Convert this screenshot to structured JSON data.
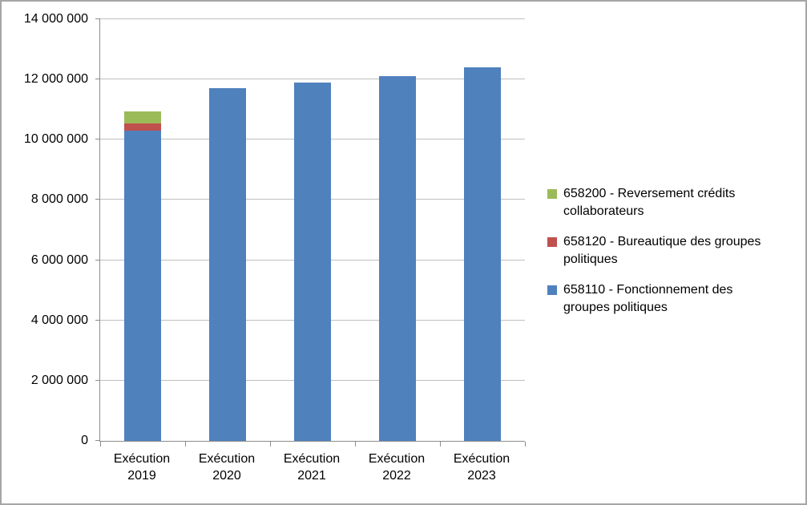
{
  "chart_data": {
    "type": "bar",
    "stacked": true,
    "title": "",
    "xlabel": "",
    "ylabel": "",
    "grid": true,
    "legend_position": "right",
    "ylim": [
      0,
      14000000
    ],
    "categories": [
      "Exécution 2019",
      "Exécution 2020",
      "Exécution 2021",
      "Exécution 2022",
      "Exécution 2023"
    ],
    "yticks": [
      {
        "value": 0,
        "label": "0"
      },
      {
        "value": 2000000,
        "label": "2 000 000"
      },
      {
        "value": 4000000,
        "label": "4 000 000"
      },
      {
        "value": 6000000,
        "label": "6 000 000"
      },
      {
        "value": 8000000,
        "label": "8 000 000"
      },
      {
        "value": 10000000,
        "label": "10 000 000"
      },
      {
        "value": 12000000,
        "label": "12 000 000"
      },
      {
        "value": 14000000,
        "label": "14 000 000"
      }
    ],
    "series": [
      {
        "name": "658110 - Fonctionnement des groupes politiques",
        "color": "#4F81BD",
        "values": [
          10300000,
          11700000,
          11900000,
          12100000,
          12400000
        ]
      },
      {
        "name": "658120 - Bureautique des groupes politiques",
        "color": "#C0504D",
        "values": [
          250000,
          0,
          0,
          0,
          0
        ]
      },
      {
        "name": "658200 - Reversement crédits collaborateurs",
        "color": "#9BBB59",
        "values": [
          400000,
          0,
          0,
          0,
          0
        ]
      }
    ],
    "legend": [
      {
        "label": "658200 - Reversement crédits collaborateurs",
        "color": "#9BBB59"
      },
      {
        "label": "658120 - Bureautique des groupes politiques",
        "color": "#C0504D"
      },
      {
        "label": "658110 - Fonctionnement des groupes politiques",
        "color": "#4F81BD"
      }
    ]
  }
}
